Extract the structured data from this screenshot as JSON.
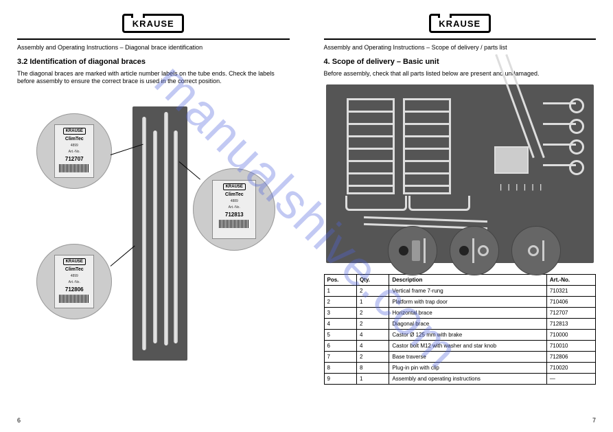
{
  "watermark": "manualshive.com",
  "logo_text": "KRAUSE",
  "left_page": {
    "subtitle": "Assembly and Operating Instructions – Diagonal brace identification",
    "section": "3.2 Identification of diagonal braces",
    "body": "The diagonal braces are marked with article number labels on the tube ends. Check the labels before assembly to ensure the correct brace is used in the correct position.",
    "labels": [
      {
        "brand": "KRAUSE",
        "model": "ClimTec",
        "code": "4899",
        "art_label": "Art.-No.",
        "art": "712707"
      },
      {
        "brand": "KRAUSE",
        "model": "ClimTec",
        "code": "4899",
        "art_label": "Art.-No.",
        "art": "712806"
      },
      {
        "brand": "KRAUSE",
        "model": "ClimTec",
        "code": "4889",
        "art_label": "Art.-No.",
        "art": "712813"
      }
    ],
    "page_num": "6"
  },
  "right_page": {
    "subtitle": "Assembly and Operating Instructions – Scope of delivery / parts list",
    "section": "4. Scope of delivery – Basic unit",
    "body": "Before assembly, check that all parts listed below are present and undamaged.",
    "table": {
      "headers": [
        "Pos.",
        "Qty.",
        "Description",
        "Art.-No."
      ],
      "rows": [
        [
          "1",
          "2",
          "Vertical frame 7-rung",
          "710321"
        ],
        [
          "2",
          "1",
          "Platform with trap door",
          "710406"
        ],
        [
          "3",
          "2",
          "Horizontal brace",
          "712707"
        ],
        [
          "4",
          "2",
          "Diagonal brace",
          "712813"
        ],
        [
          "5",
          "4",
          "Castor Ø 125 mm with brake",
          "710000"
        ],
        [
          "6",
          "4",
          "Castor bolt M12 with washer and star knob",
          "710010"
        ],
        [
          "7",
          "2",
          "Base traverse",
          "712806"
        ],
        [
          "8",
          "8",
          "Plug-in pin with clip",
          "710020"
        ],
        [
          "9",
          "1",
          "Assembly and operating instructions",
          "—"
        ]
      ]
    },
    "page_num": "7"
  }
}
